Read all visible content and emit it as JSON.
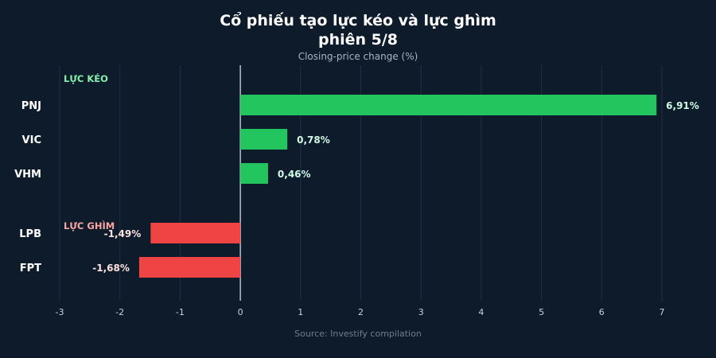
{
  "chart_data": {
    "type": "bar",
    "orientation": "horizontal",
    "title_line1": "Cổ phiếu tạo lực kéo và lực ghìm",
    "title_line2": "phiên 5/8",
    "subtitle": "Closing-price change (%)",
    "source": "Source: Investify compilation",
    "xlim": [
      -3,
      7
    ],
    "xticks": [
      -3,
      -2,
      -1,
      0,
      1,
      2,
      3,
      4,
      5,
      6,
      7
    ],
    "grid": true,
    "groups": [
      {
        "label": "LỰC KÉO",
        "color": "#22c55e",
        "label_color": "#86efac",
        "items": [
          {
            "category": "PNJ",
            "value": 6.91,
            "value_label": "6,91%"
          },
          {
            "category": "VIC",
            "value": 0.78,
            "value_label": "0,78%"
          },
          {
            "category": "VHM",
            "value": 0.46,
            "value_label": "0,46%"
          }
        ]
      },
      {
        "label": "LỰC GHÌM",
        "color": "#ef4444",
        "label_color": "#fca5a5",
        "items": [
          {
            "category": "LPB",
            "value": -1.49,
            "value_label": "-1,49%"
          },
          {
            "category": "FPT",
            "value": -1.68,
            "value_label": "-1,68%"
          }
        ]
      }
    ]
  }
}
